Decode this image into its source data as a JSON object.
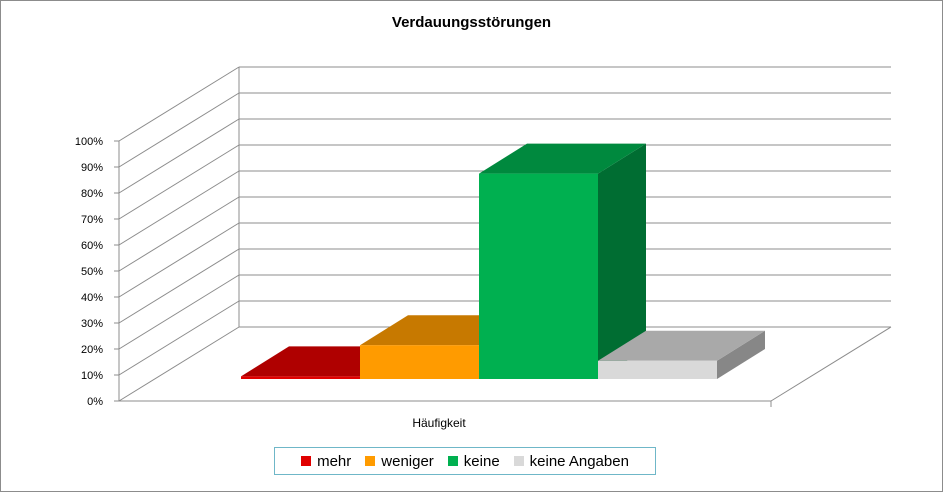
{
  "chart_data": {
    "type": "bar",
    "title": "Verdauungsstörungen",
    "categories": [
      "Häufigkeit"
    ],
    "series": [
      {
        "name": "mehr",
        "values": [
          1
        ],
        "color": "#e00000"
      },
      {
        "name": "weniger",
        "values": [
          13
        ],
        "color": "#ff9b00"
      },
      {
        "name": "keine",
        "values": [
          79
        ],
        "color": "#00b050"
      },
      {
        "name": "keine Angaben",
        "values": [
          7
        ],
        "color": "#d9d9d9"
      }
    ],
    "yticks": [
      "0%",
      "10%",
      "20%",
      "30%",
      "40%",
      "50%",
      "60%",
      "70%",
      "80%",
      "90%",
      "100%"
    ],
    "ylim": [
      0,
      100
    ],
    "grid": true,
    "legend_position": "bottom"
  }
}
